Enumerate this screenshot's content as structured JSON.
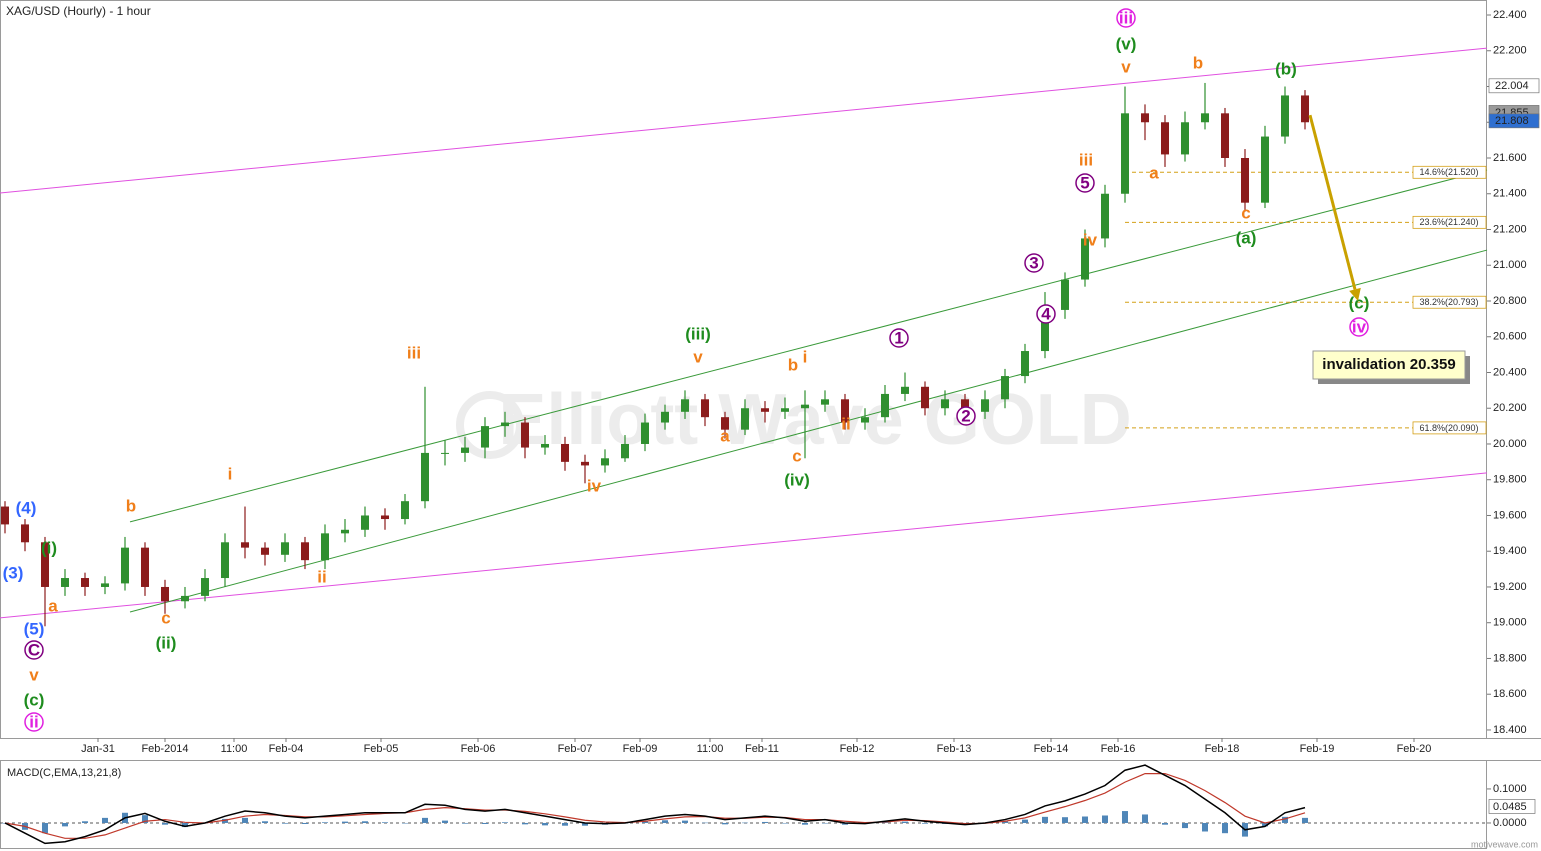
{
  "chart_data": [
    {
      "type": "candlestick",
      "title": "XAG/USD (Hourly) - 1 hour",
      "xlim": [
        -0.25,
        74.1
      ],
      "ylim": [
        18.355,
        22.484
      ],
      "xticks": [
        {
          "value": 4.65,
          "label": "Jan-31"
        },
        {
          "value": 8,
          "label": "Feb-2014"
        },
        {
          "value": 11.45,
          "label": "11:00"
        },
        {
          "value": 14.05,
          "label": "Feb-04"
        },
        {
          "value": 18.8,
          "label": "Feb-05"
        },
        {
          "value": 23.65,
          "label": "Feb-06"
        },
        {
          "value": 28.5,
          "label": "Feb-07"
        },
        {
          "value": 31.75,
          "label": "Feb-09"
        },
        {
          "value": 35.25,
          "label": "11:00"
        },
        {
          "value": 37.85,
          "label": "Feb-11"
        },
        {
          "value": 42.6,
          "label": "Feb-12"
        },
        {
          "value": 47.45,
          "label": "Feb-13"
        },
        {
          "value": 52.3,
          "label": "Feb-14"
        },
        {
          "value": 55.65,
          "label": "Feb-16"
        },
        {
          "value": 60.85,
          "label": "Feb-18"
        },
        {
          "value": 65.6,
          "label": "Feb-19"
        },
        {
          "value": 70.45,
          "label": "Feb-20"
        }
      ],
      "yticks": [
        {
          "value": 18.4,
          "label": "18.400"
        },
        {
          "value": 18.6,
          "label": "18.600"
        },
        {
          "value": 18.8,
          "label": "18.800"
        },
        {
          "value": 19.0,
          "label": "19.000"
        },
        {
          "value": 19.2,
          "label": "19.200"
        },
        {
          "value": 19.4,
          "label": "19.400"
        },
        {
          "value": 19.6,
          "label": "19.600"
        },
        {
          "value": 19.8,
          "label": "19.800"
        },
        {
          "value": 20.0,
          "label": "20.000"
        },
        {
          "value": 20.2,
          "label": "20.200"
        },
        {
          "value": 20.4,
          "label": "20.400"
        },
        {
          "value": 20.6,
          "label": "20.600"
        },
        {
          "value": 20.8,
          "label": "20.800"
        },
        {
          "value": 21.0,
          "label": "21.000"
        },
        {
          "value": 21.2,
          "label": "21.200"
        },
        {
          "value": 21.4,
          "label": "21.400"
        },
        {
          "value": 21.6,
          "label": "21.600"
        },
        {
          "value": 21.8,
          "label": "21.800"
        },
        {
          "value": 22.0,
          "label": "22.000"
        },
        {
          "value": 22.2,
          "label": "22.200"
        },
        {
          "value": 22.4,
          "label": "22.400"
        }
      ],
      "up_color": "#2f8f2f",
      "down_color": "#8b1c1c",
      "open": [
        19.65,
        19.55,
        19.45,
        19.2,
        19.25,
        19.2,
        19.22,
        19.42,
        19.2,
        19.12,
        19.15,
        19.25,
        19.45,
        19.42,
        19.38,
        19.45,
        19.35,
        19.5,
        19.52,
        19.6,
        19.58,
        19.68,
        19.95,
        19.95,
        19.98,
        20.1,
        20.12,
        19.98,
        20.0,
        19.9,
        19.88,
        19.92,
        20.0,
        20.12,
        20.18,
        20.25,
        20.15,
        20.08,
        20.2,
        20.18,
        20.2,
        20.22,
        20.25,
        20.12,
        20.15,
        20.28,
        20.32,
        20.2,
        20.25,
        20.18,
        20.25,
        20.38,
        20.52,
        20.75,
        20.92,
        21.15,
        21.4,
        21.85,
        21.8,
        21.62,
        21.8,
        21.85,
        21.6,
        21.35,
        21.72,
        21.95
      ],
      "high": [
        19.68,
        19.58,
        19.48,
        19.3,
        19.28,
        19.26,
        19.48,
        19.45,
        19.24,
        19.2,
        19.3,
        19.5,
        19.65,
        19.45,
        19.5,
        19.48,
        19.55,
        19.58,
        19.65,
        19.64,
        19.72,
        20.32,
        20.02,
        20.04,
        20.15,
        20.18,
        20.15,
        20.05,
        20.04,
        19.94,
        19.97,
        20.05,
        20.17,
        20.22,
        20.3,
        20.28,
        20.18,
        20.25,
        20.24,
        20.26,
        20.3,
        20.3,
        20.28,
        20.2,
        20.33,
        20.4,
        20.35,
        20.3,
        20.28,
        20.3,
        20.42,
        20.56,
        20.85,
        20.96,
        21.2,
        21.45,
        22.0,
        21.9,
        21.84,
        21.86,
        22.02,
        21.88,
        21.65,
        21.78,
        22.0,
        21.98
      ],
      "low": [
        19.5,
        19.4,
        18.98,
        19.15,
        19.15,
        19.16,
        19.18,
        19.15,
        19.05,
        19.08,
        19.12,
        19.2,
        19.36,
        19.32,
        19.34,
        19.3,
        19.3,
        19.45,
        19.48,
        19.52,
        19.55,
        19.64,
        19.88,
        19.9,
        19.92,
        20.04,
        19.92,
        19.94,
        19.85,
        19.78,
        19.84,
        19.9,
        19.96,
        20.08,
        20.14,
        20.1,
        20.03,
        20.05,
        20.12,
        20.14,
        19.92,
        20.18,
        20.08,
        20.08,
        20.12,
        20.24,
        20.16,
        20.16,
        20.12,
        20.14,
        20.2,
        20.34,
        20.48,
        20.7,
        20.88,
        21.1,
        21.35,
        21.7,
        21.55,
        21.58,
        21.76,
        21.55,
        21.3,
        21.32,
        21.68,
        21.76
      ],
      "close": [
        19.55,
        19.45,
        19.2,
        19.25,
        19.2,
        19.22,
        19.42,
        19.2,
        19.12,
        19.15,
        19.25,
        19.45,
        19.42,
        19.38,
        19.45,
        19.35,
        19.5,
        19.52,
        19.6,
        19.58,
        19.68,
        19.95,
        19.95,
        19.98,
        20.1,
        20.12,
        19.98,
        20.0,
        19.9,
        19.88,
        19.92,
        20.0,
        20.12,
        20.18,
        20.25,
        20.15,
        20.08,
        20.2,
        20.18,
        20.2,
        20.22,
        20.25,
        20.12,
        20.15,
        20.28,
        20.32,
        20.2,
        20.25,
        20.18,
        20.25,
        20.38,
        20.52,
        20.75,
        20.92,
        21.15,
        21.4,
        21.85,
        21.8,
        21.62,
        21.8,
        21.85,
        21.6,
        21.35,
        21.72,
        21.95,
        21.8
      ],
      "price_markers": [
        {
          "value": 22.004,
          "color": "#ffffff",
          "text_color": "#000000"
        },
        {
          "value": 21.855,
          "color": "#9a9a9a",
          "text_color": "#ffffff"
        },
        {
          "value": 21.808,
          "color": "#2f6fd0",
          "text_color": "#ffffff"
        }
      ],
      "trendlines": [
        {
          "from": [
            -0.25,
            21.404
          ],
          "to": [
            74.1,
            22.215
          ],
          "color": "#e050e0"
        },
        {
          "from": [
            -0.25,
            19.027
          ],
          "to": [
            74.1,
            19.838
          ],
          "color": "#e050e0"
        },
        {
          "from": [
            6.25,
            19.564
          ],
          "to": [
            74.1,
            21.533
          ],
          "color": "#3a9a3a"
        },
        {
          "from": [
            6.25,
            19.06
          ],
          "to": [
            74.1,
            21.085
          ],
          "color": "#3a9a3a"
        }
      ],
      "fib_start": 56,
      "fib_levels": [
        {
          "value": 21.52,
          "label": "14.6%(21.520)"
        },
        {
          "value": 21.24,
          "label": "23.6%(21.240)"
        },
        {
          "value": 20.793,
          "label": "38.2%(20.793)"
        },
        {
          "value": 20.09,
          "label": "61.8%(20.090)"
        }
      ],
      "arrow": {
        "from": [
          65.25,
          21.84
        ],
        "to": [
          67.65,
          20.8
        ],
        "color": "#c9a100"
      },
      "invalidation": "invalidation 20.359",
      "watermark": "Elliott Wave GOLD",
      "annotations": [
        {
          "text": "(4)",
          "color": "#3366ff",
          "style": "plain"
        },
        {
          "text": "(3)",
          "color": "#3366ff",
          "style": "plain"
        },
        {
          "text": "(5)",
          "color": "#3366ff",
          "style": "plain"
        },
        {
          "text": "C",
          "color": "#800080",
          "style": "circle"
        },
        {
          "text": "v",
          "color": "#f07f1a",
          "style": "plain"
        },
        {
          "text": "(c)",
          "color": "#1e8c1e",
          "style": "plain"
        },
        {
          "text": "ii",
          "color": "#e020e0",
          "style": "circle"
        },
        {
          "text": "(i)",
          "color": "#1e8c1e",
          "style": "plain"
        },
        {
          "text": "a",
          "color": "#f07f1a",
          "style": "plain"
        },
        {
          "text": "b",
          "color": "#f07f1a",
          "style": "plain"
        },
        {
          "text": "c",
          "color": "#f07f1a",
          "style": "plain"
        },
        {
          "text": "(ii)",
          "color": "#1e8c1e",
          "style": "plain"
        },
        {
          "text": "i",
          "color": "#f07f1a",
          "style": "plain"
        },
        {
          "text": "ii",
          "color": "#f07f1a",
          "style": "plain"
        },
        {
          "text": "iii",
          "color": "#f07f1a",
          "style": "plain"
        },
        {
          "text": "iv",
          "color": "#f07f1a",
          "style": "plain"
        },
        {
          "text": "(iii)",
          "color": "#1e8c1e",
          "style": "plain"
        },
        {
          "text": "v",
          "color": "#f07f1a",
          "style": "plain"
        },
        {
          "text": "a",
          "color": "#f07f1a",
          "style": "plain"
        },
        {
          "text": "b",
          "color": "#f07f1a",
          "style": "plain"
        },
        {
          "text": "i",
          "color": "#f07f1a",
          "style": "plain"
        },
        {
          "text": "ii",
          "color": "#f07f1a",
          "style": "plain"
        },
        {
          "text": "c",
          "color": "#f07f1a",
          "style": "plain"
        },
        {
          "text": "(iv)",
          "color": "#1e8c1e",
          "style": "plain"
        },
        {
          "text": "1",
          "color": "#800080",
          "style": "circle"
        },
        {
          "text": "2",
          "color": "#800080",
          "style": "circle"
        },
        {
          "text": "3",
          "color": "#800080",
          "style": "circle"
        },
        {
          "text": "4",
          "color": "#800080",
          "style": "circle"
        },
        {
          "text": "iv",
          "color": "#f07f1a",
          "style": "plain"
        },
        {
          "text": "5",
          "color": "#800080",
          "style": "circle"
        },
        {
          "text": "iii",
          "color": "#f07f1a",
          "style": "plain"
        },
        {
          "text": "iii",
          "color": "#e020e0",
          "style": "circle"
        },
        {
          "text": "(v)",
          "color": "#1e8c1e",
          "style": "plain"
        },
        {
          "text": "v",
          "color": "#f07f1a",
          "style": "plain"
        },
        {
          "text": "b",
          "color": "#f07f1a",
          "style": "plain"
        },
        {
          "text": "(b)",
          "color": "#1e8c1e",
          "style": "plain"
        },
        {
          "text": "a",
          "color": "#f07f1a",
          "style": "plain"
        },
        {
          "text": "c",
          "color": "#f07f1a",
          "style": "plain"
        },
        {
          "text": "(a)",
          "color": "#1e8c1e",
          "style": "plain"
        },
        {
          "text": "(c)",
          "color": "#1e8c1e",
          "style": "plain"
        },
        {
          "text": "iv",
          "color": "#e020e0",
          "style": "circle"
        }
      ]
    },
    {
      "type": "macd",
      "title": "MACD(C,EMA,13,21,8)",
      "ylim": [
        -0.0735,
        0.185
      ],
      "yticks": [
        {
          "value": 0.1,
          "label": "0.1000"
        },
        {
          "value": 0.0,
          "label": "0.0000"
        }
      ],
      "current": {
        "value": 0.0485,
        "label": "0.0485"
      },
      "macd_color": "#000000",
      "signal_color": "#c0392b",
      "histogram_color": "#4f86b8",
      "macd": [
        0.0,
        -0.03,
        -0.06,
        -0.055,
        -0.04,
        -0.02,
        0.015,
        0.028,
        0.005,
        -0.01,
        0.0,
        0.02,
        0.035,
        0.03,
        0.02,
        0.015,
        0.02,
        0.025,
        0.03,
        0.03,
        0.03,
        0.055,
        0.052,
        0.04,
        0.035,
        0.04,
        0.03,
        0.02,
        0.01,
        0.0,
        -0.002,
        0.0,
        0.01,
        0.02,
        0.025,
        0.02,
        0.01,
        0.015,
        0.02,
        0.015,
        0.005,
        0.01,
        0.0,
        -0.002,
        0.005,
        0.012,
        0.005,
        0.0,
        -0.005,
        0.0,
        0.01,
        0.025,
        0.05,
        0.065,
        0.085,
        0.11,
        0.155,
        0.17,
        0.14,
        0.11,
        0.07,
        0.03,
        -0.02,
        -0.01,
        0.03,
        0.045
      ],
      "signal": [
        0.0,
        -0.01,
        -0.03,
        -0.045,
        -0.045,
        -0.035,
        -0.015,
        0.005,
        0.01,
        0.002,
        0.0,
        0.008,
        0.02,
        0.025,
        0.022,
        0.018,
        0.018,
        0.021,
        0.025,
        0.028,
        0.03,
        0.04,
        0.045,
        0.042,
        0.038,
        0.038,
        0.034,
        0.027,
        0.018,
        0.008,
        0.003,
        0.001,
        0.005,
        0.012,
        0.018,
        0.019,
        0.014,
        0.014,
        0.017,
        0.016,
        0.01,
        0.01,
        0.005,
        0.001,
        0.003,
        0.008,
        0.007,
        0.003,
        -0.002,
        -0.001,
        0.005,
        0.015,
        0.032,
        0.048,
        0.066,
        0.088,
        0.12,
        0.145,
        0.145,
        0.125,
        0.095,
        0.06,
        0.02,
        0.0,
        0.012,
        0.03
      ],
      "histogram": [
        0,
        -0.02,
        -0.03,
        -0.01,
        0.005,
        0.015,
        0.03,
        0.023,
        -0.005,
        -0.012,
        0,
        0.012,
        0.015,
        0.005,
        -0.002,
        -0.003,
        0.002,
        0.004,
        0.005,
        0.002,
        0,
        0.015,
        0.007,
        -0.002,
        -0.003,
        0.002,
        -0.004,
        -0.007,
        -0.008,
        -0.008,
        -0.005,
        -0.001,
        0.005,
        0.008,
        0.007,
        0.001,
        -0.004,
        0.001,
        0.003,
        -0.001,
        -0.005,
        0,
        -0.005,
        -0.003,
        0.002,
        0.004,
        -0.002,
        -0.003,
        -0.003,
        0.001,
        0.005,
        0.01,
        0.018,
        0.017,
        0.019,
        0.022,
        0.035,
        0.025,
        -0.005,
        -0.015,
        -0.025,
        -0.03,
        -0.04,
        -0.01,
        0.018,
        0.015
      ]
    }
  ],
  "footer": "motivewave.com"
}
